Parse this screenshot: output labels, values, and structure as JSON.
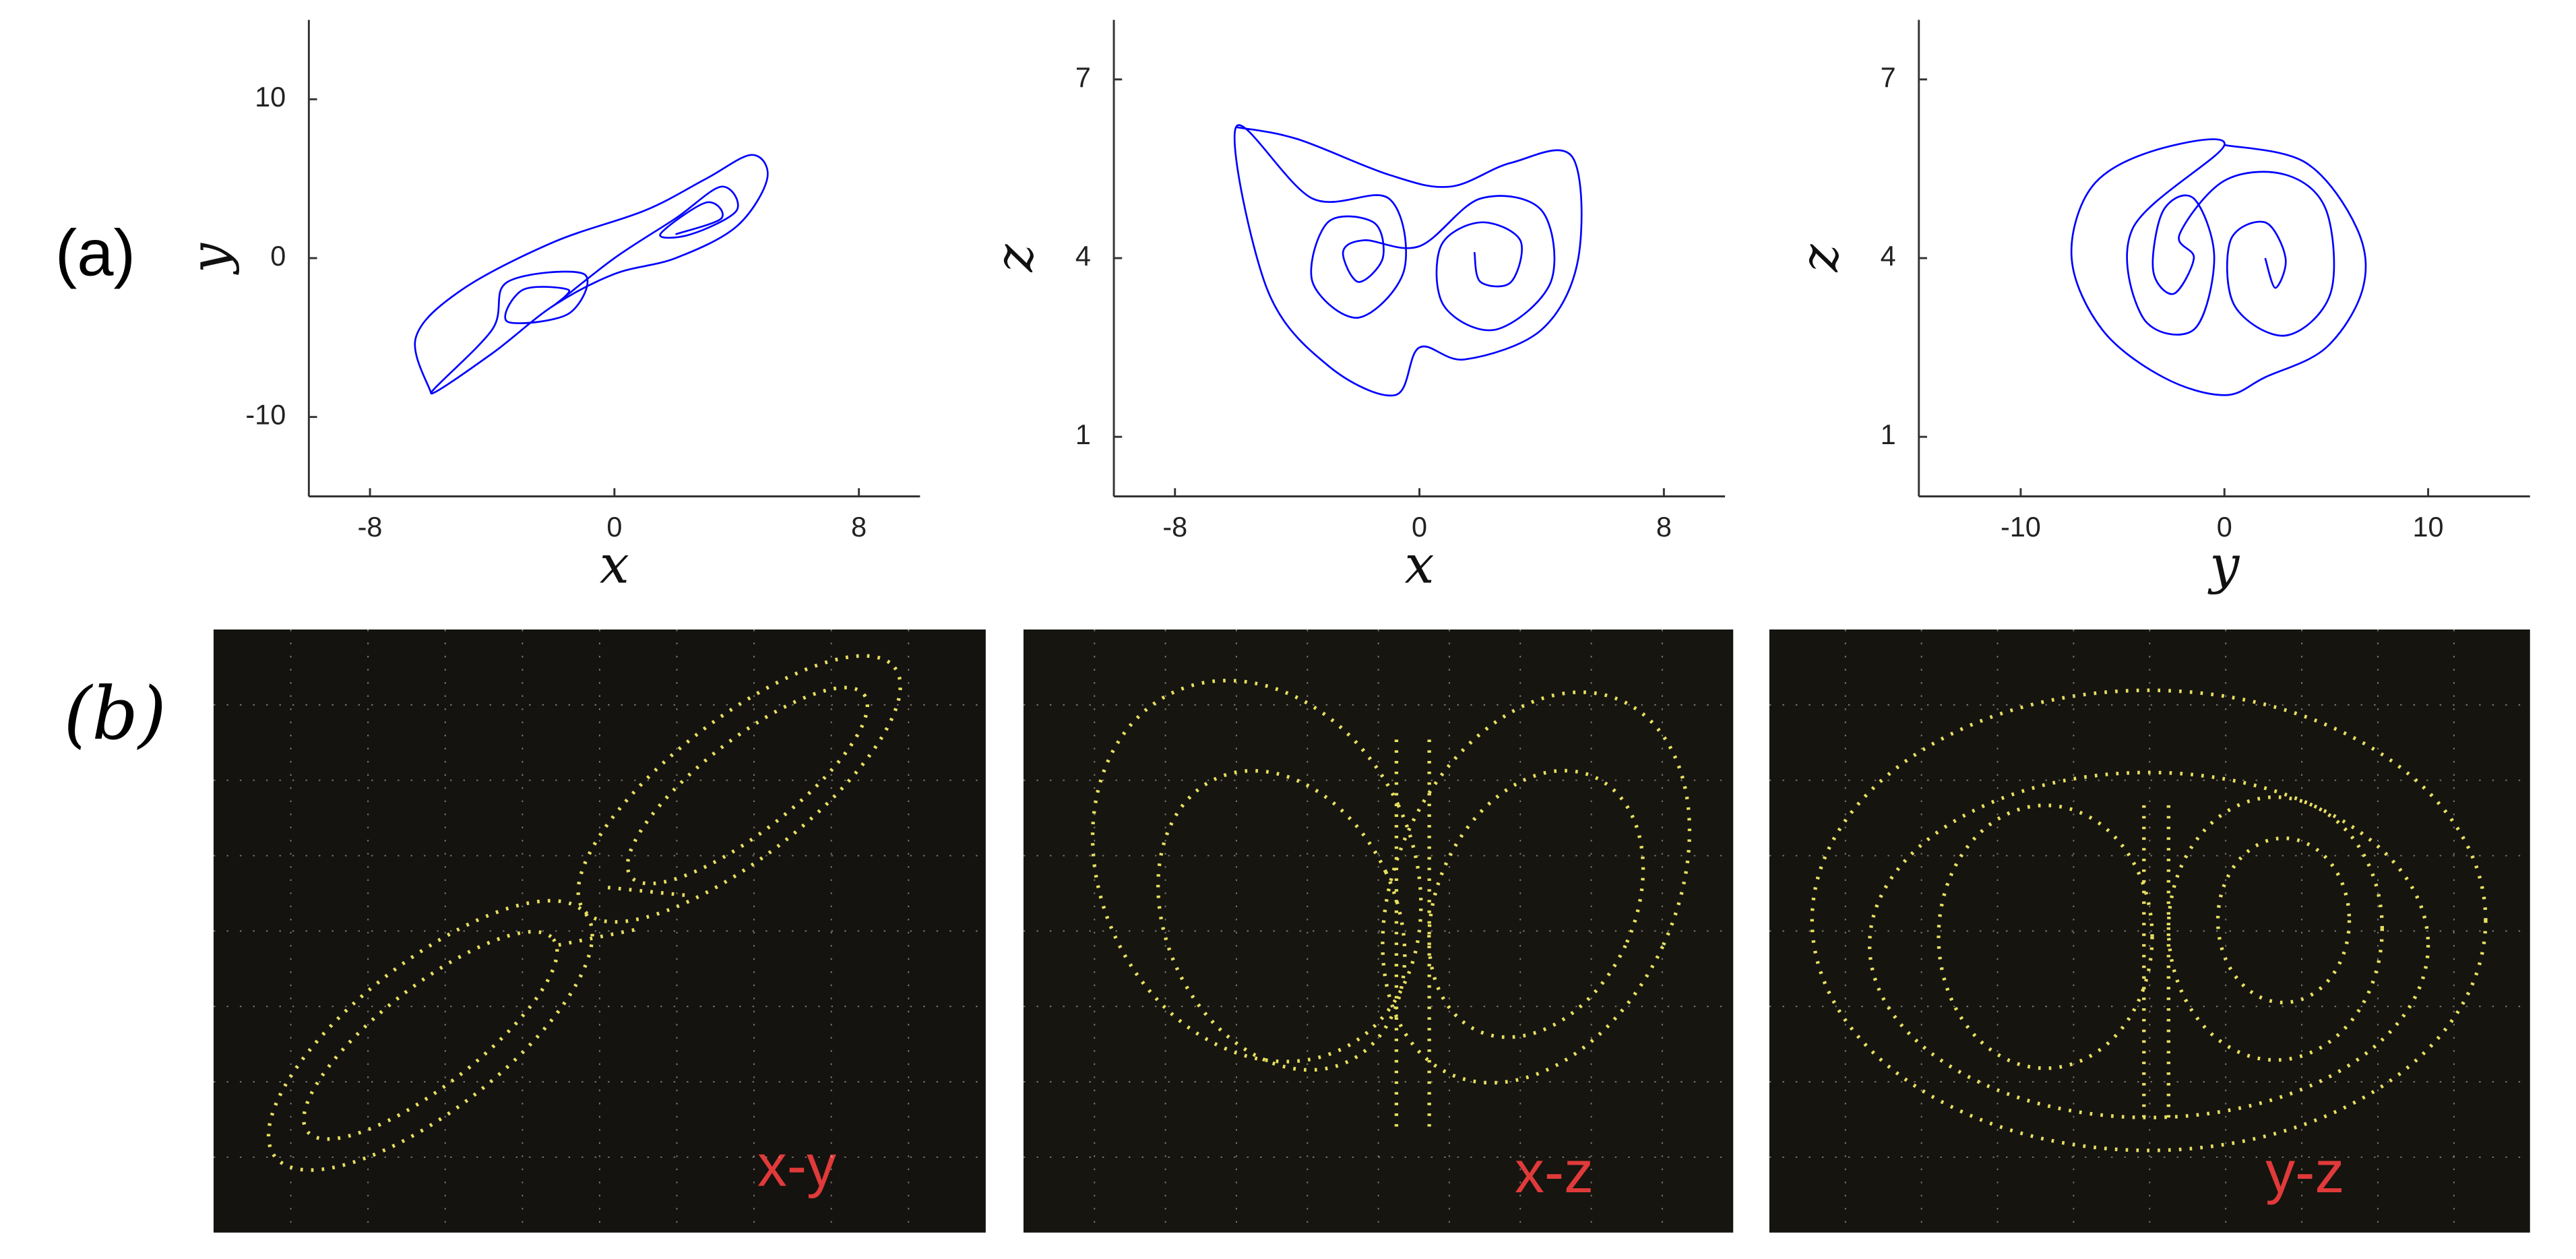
{
  "panel_labels": [
    "(a)",
    "(b)"
  ],
  "chart_data": [
    {
      "type": "line",
      "xlabel": "x",
      "ylabel": "y",
      "xlim": [
        -10,
        10
      ],
      "ylim": [
        -15,
        15
      ],
      "xticks": [
        -8,
        0,
        8
      ],
      "yticks": [
        -10,
        0,
        10
      ],
      "series": [
        {
          "color": "#0000ff",
          "x": [
            -6,
            -6.5,
            -5,
            -2,
            1,
            3,
            4.5,
            5,
            4,
            2,
            0,
            -2,
            -4,
            -6,
            -4,
            -3.5,
            -1,
            -1.5,
            -3.5,
            -3,
            -1.5,
            -2,
            0,
            2,
            3.5,
            4,
            2.5,
            1.5,
            3,
            3.5,
            2
          ],
          "y": [
            -8.5,
            -5,
            -2,
            1,
            3,
            5,
            6.5,
            5,
            2,
            0,
            -1,
            -3,
            -6,
            -8.5,
            -4.5,
            -1.5,
            -1,
            -3.5,
            -4,
            -2,
            -2,
            -3,
            0,
            2.5,
            4.5,
            3,
            1.5,
            1.5,
            3.5,
            2.5,
            1.5
          ]
        }
      ]
    },
    {
      "type": "line",
      "xlabel": "x",
      "ylabel": "z",
      "xlim": [
        -10,
        10
      ],
      "ylim": [
        0,
        8
      ],
      "xticks": [
        -8,
        0,
        8
      ],
      "yticks": [
        1,
        4,
        7
      ],
      "series": [
        {
          "color": "#0000ff",
          "x": [
            -6,
            -4,
            -1,
            1,
            3,
            5,
            5.2,
            4,
            1.5,
            0,
            -0.8,
            -3,
            -5,
            -6,
            -3.5,
            -1,
            -0.5,
            -2,
            -3.5,
            -3,
            -1.5,
            -1.2,
            -2,
            -2.5,
            -1.8,
            0,
            2,
            4,
            4.3,
            2.5,
            0.8,
            0.7,
            2,
            3.3,
            3,
            2,
            1.8
          ],
          "y": [
            6.2,
            6,
            5.4,
            5.2,
            5.6,
            5.7,
            4,
            2.8,
            2.3,
            2.5,
            1.7,
            2.2,
            3.5,
            6.2,
            5,
            5,
            3.8,
            3,
            3.6,
            4.6,
            4.6,
            4,
            3.6,
            4.1,
            4.3,
            4.2,
            5,
            4.8,
            3.6,
            2.8,
            3.2,
            4.2,
            4.6,
            4.3,
            3.6,
            3.6,
            4.1
          ]
        }
      ]
    },
    {
      "type": "line",
      "xlabel": "y",
      "ylabel": "z",
      "xlim": [
        -15,
        15
      ],
      "ylim": [
        0,
        8
      ],
      "xticks": [
        -10,
        0,
        10
      ],
      "yticks": [
        1,
        4,
        7
      ],
      "series": [
        {
          "color": "#0000ff",
          "x": [
            0,
            4,
            6.5,
            6.8,
            5,
            2,
            0,
            -3,
            -6,
            -7.5,
            -6.5,
            -3.5,
            0,
            -4.5,
            -4,
            -1.5,
            -0.5,
            -1.5,
            -3,
            -3.5,
            -2.5,
            -1.5,
            -2.2,
            0,
            3,
            5,
            5.2,
            3,
            0.5,
            0.3,
            2,
            3,
            2.5,
            2
          ],
          "y": [
            5.9,
            5.6,
            4.5,
            3.5,
            2.5,
            2,
            1.7,
            2,
            2.8,
            4,
            5.2,
            5.8,
            5.9,
            4.5,
            3,
            2.8,
            4,
            5,
            4.8,
            3.8,
            3.4,
            4,
            4.4,
            5.3,
            5.4,
            4.8,
            3.4,
            2.7,
            3.2,
            4.3,
            4.6,
            4,
            3.5,
            4
          ]
        }
      ]
    }
  ],
  "scope_photos": [
    {
      "label": "x-y"
    },
    {
      "label": "x-z"
    },
    {
      "label": "y-z"
    }
  ]
}
